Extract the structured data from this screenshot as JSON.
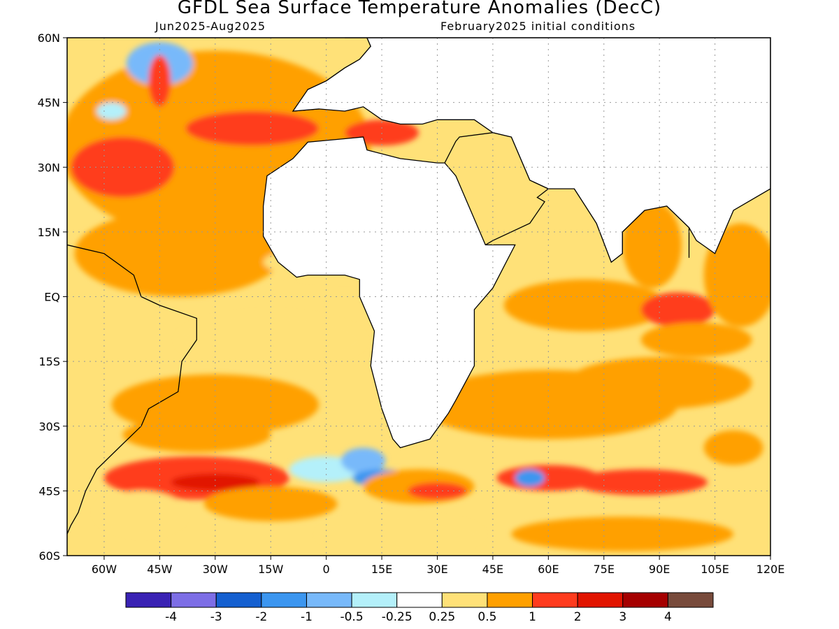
{
  "header": {
    "title": "GFDL Sea Surface Temperature Anomalies (DecC)",
    "period": "Jun2025-Aug2025",
    "initial_conditions": "February2025 initial conditions"
  },
  "colors": {
    "land_outline": "#000000",
    "grid": "#999999"
  },
  "chart_data": {
    "type": "heatmap",
    "title": "GFDL Sea Surface Temperature Anomalies (DecC)",
    "subtitle_left": "Jun2025-Aug2025",
    "subtitle_right": "February2025 initial conditions",
    "xlim": [
      -70,
      120
    ],
    "ylim": [
      -60,
      60
    ],
    "x_ticks": [
      {
        "value": -60,
        "label": "60W"
      },
      {
        "value": -45,
        "label": "45W"
      },
      {
        "value": -30,
        "label": "30W"
      },
      {
        "value": -15,
        "label": "15W"
      },
      {
        "value": 0,
        "label": "0"
      },
      {
        "value": 15,
        "label": "15E"
      },
      {
        "value": 30,
        "label": "30E"
      },
      {
        "value": 45,
        "label": "45E"
      },
      {
        "value": 60,
        "label": "60E"
      },
      {
        "value": 75,
        "label": "75E"
      },
      {
        "value": 90,
        "label": "90E"
      },
      {
        "value": 105,
        "label": "105E"
      },
      {
        "value": 120,
        "label": "120E"
      }
    ],
    "y_ticks": [
      {
        "value": 60,
        "label": "60N"
      },
      {
        "value": 45,
        "label": "45N"
      },
      {
        "value": 30,
        "label": "30N"
      },
      {
        "value": 15,
        "label": "15N"
      },
      {
        "value": 0,
        "label": "EQ"
      },
      {
        "value": -15,
        "label": "15S"
      },
      {
        "value": -30,
        "label": "30S"
      },
      {
        "value": -45,
        "label": "45S"
      },
      {
        "value": -60,
        "label": "60S"
      }
    ],
    "grid": true,
    "colorbar": {
      "colors": [
        "#3a22b4",
        "#7d6ee6",
        "#1560d0",
        "#3c96f0",
        "#78b9fa",
        "#b4f0fa",
        "#ffffff",
        "#ffe178",
        "#ffa000",
        "#ff3c1e",
        "#e11400",
        "#a50000",
        "#784b3c"
      ],
      "labels": [
        "-4",
        "-3",
        "-2",
        "-1",
        "-0.5",
        "-0.25",
        "0.25",
        "0.5",
        "1",
        "2",
        "3",
        "4"
      ]
    },
    "anomaly_regions": [
      {
        "lon": -30,
        "lat": 35,
        "rx": 42,
        "ry": 22,
        "level": 8
      },
      {
        "lon": -40,
        "lat": 10,
        "rx": 28,
        "ry": 10,
        "level": 8
      },
      {
        "lon": -55,
        "lat": 30,
        "rx": 14,
        "ry": 7,
        "level": 9
      },
      {
        "lon": -20,
        "lat": 39,
        "rx": 18,
        "ry": 4,
        "level": 9
      },
      {
        "lon": -45,
        "lat": 54,
        "rx": 9,
        "ry": 5,
        "level": 4
      },
      {
        "lon": -45,
        "lat": 50,
        "rx": 3,
        "ry": 6,
        "level": 9
      },
      {
        "lon": -58,
        "lat": 43,
        "rx": 4,
        "ry": 2,
        "level": 5
      },
      {
        "lon": 5,
        "lat": 8,
        "rx": 22,
        "ry": 4,
        "level": 7
      },
      {
        "lon": -15,
        "lat": -10,
        "rx": 25,
        "ry": 6,
        "level": 7
      },
      {
        "lon": -30,
        "lat": -25,
        "rx": 28,
        "ry": 7,
        "level": 8
      },
      {
        "lon": -35,
        "lat": -32,
        "rx": 20,
        "ry": 4,
        "level": 8
      },
      {
        "lon": -35,
        "lat": -42,
        "rx": 25,
        "ry": 5,
        "level": 9
      },
      {
        "lon": -30,
        "lat": -43,
        "rx": 12,
        "ry": 2,
        "level": 10
      },
      {
        "lon": -15,
        "lat": -48,
        "rx": 18,
        "ry": 4,
        "level": 8
      },
      {
        "lon": -50,
        "lat": -50,
        "rx": 12,
        "ry": 5,
        "level": 7
      },
      {
        "lon": 0,
        "lat": -40,
        "rx": 10,
        "ry": 3,
        "level": 5
      },
      {
        "lon": 10,
        "lat": -38,
        "rx": 6,
        "ry": 3,
        "level": 4
      },
      {
        "lon": 15,
        "lat": -42,
        "rx": 8,
        "ry": 2,
        "level": 3
      },
      {
        "lon": 25,
        "lat": -44,
        "rx": 15,
        "ry": 4,
        "level": 8
      },
      {
        "lon": 30,
        "lat": -45,
        "rx": 8,
        "ry": 2,
        "level": 9
      },
      {
        "lon": 20,
        "lat": -55,
        "rx": 22,
        "ry": 4,
        "level": 7
      },
      {
        "lon": 70,
        "lat": -2,
        "rx": 22,
        "ry": 6,
        "level": 8
      },
      {
        "lon": 95,
        "lat": -3,
        "rx": 10,
        "ry": 4,
        "level": 9
      },
      {
        "lon": 88,
        "lat": 12,
        "rx": 8,
        "ry": 10,
        "level": 8
      },
      {
        "lon": 60,
        "lat": -25,
        "rx": 35,
        "ry": 8,
        "level": 8
      },
      {
        "lon": 90,
        "lat": -20,
        "rx": 25,
        "ry": 6,
        "level": 8
      },
      {
        "lon": 100,
        "lat": -10,
        "rx": 15,
        "ry": 4,
        "level": 8
      },
      {
        "lon": 60,
        "lat": -42,
        "rx": 14,
        "ry": 3,
        "level": 9
      },
      {
        "lon": 55,
        "lat": -42,
        "rx": 4,
        "ry": 2,
        "level": 3
      },
      {
        "lon": 85,
        "lat": -43,
        "rx": 18,
        "ry": 3,
        "level": 9
      },
      {
        "lon": 80,
        "lat": -55,
        "rx": 30,
        "ry": 4,
        "level": 8
      },
      {
        "lon": 110,
        "lat": -35,
        "rx": 8,
        "ry": 4,
        "level": 8
      },
      {
        "lon": 112,
        "lat": 5,
        "rx": 10,
        "ry": 12,
        "level": 8
      },
      {
        "lon": 15,
        "lat": 38,
        "rx": 10,
        "ry": 3,
        "level": 9
      }
    ]
  },
  "map": {
    "continents": [
      {
        "name": "Africa",
        "outline": [
          [
            -17,
            21
          ],
          [
            -16,
            28
          ],
          [
            -9,
            32
          ],
          [
            -5,
            35.8
          ],
          [
            10,
            37
          ],
          [
            11,
            34
          ],
          [
            20,
            32
          ],
          [
            30,
            31
          ],
          [
            32,
            31
          ],
          [
            35,
            28
          ],
          [
            38,
            22
          ],
          [
            43,
            12
          ],
          [
            51,
            12
          ],
          [
            45,
            2
          ],
          [
            40,
            -3
          ],
          [
            40,
            -10
          ],
          [
            40,
            -16
          ],
          [
            35,
            -24
          ],
          [
            33,
            -27
          ],
          [
            28,
            -33
          ],
          [
            20,
            -35
          ],
          [
            18,
            -33
          ],
          [
            15,
            -26
          ],
          [
            12,
            -16
          ],
          [
            13,
            -8
          ],
          [
            9,
            0
          ],
          [
            9,
            4
          ],
          [
            5,
            5
          ],
          [
            -5,
            5
          ],
          [
            -8,
            4.5
          ],
          [
            -13,
            8
          ],
          [
            -17,
            14
          ]
        ]
      },
      {
        "name": "South America",
        "outline": [
          [
            -70,
            12
          ],
          [
            -60,
            10
          ],
          [
            -52,
            5
          ],
          [
            -50,
            0
          ],
          [
            -45,
            -2
          ],
          [
            -35,
            -5
          ],
          [
            -35,
            -10
          ],
          [
            -39,
            -15
          ],
          [
            -40,
            -22
          ],
          [
            -48,
            -26
          ],
          [
            -50,
            -30
          ],
          [
            -56,
            -35
          ],
          [
            -62,
            -40
          ],
          [
            -65,
            -45
          ],
          [
            -67,
            -50
          ],
          [
            -69,
            -53
          ],
          [
            -70,
            -55
          ]
        ]
      },
      {
        "name": "Europe",
        "outline": [
          [
            -9,
            43
          ],
          [
            -2,
            43.5
          ],
          [
            -5,
            48
          ],
          [
            0,
            50
          ],
          [
            5,
            53
          ],
          [
            9,
            55
          ],
          [
            12,
            58
          ],
          [
            10,
            62
          ],
          [
            5,
            62
          ]
        ]
      },
      {
        "name": "Arabia",
        "outline": [
          [
            32,
            31
          ],
          [
            35,
            36
          ],
          [
            36,
            37
          ],
          [
            45,
            38
          ],
          [
            50,
            37
          ],
          [
            55,
            27
          ],
          [
            60,
            25
          ],
          [
            57,
            23
          ],
          [
            59,
            22
          ],
          [
            55,
            17
          ],
          [
            45,
            13
          ],
          [
            43,
            12
          ]
        ]
      },
      {
        "name": "India",
        "outline": [
          [
            67,
            25
          ],
          [
            70,
            21
          ],
          [
            73,
            17
          ],
          [
            77,
            8
          ],
          [
            80,
            10
          ],
          [
            80,
            15
          ],
          [
            86,
            20
          ],
          [
            90,
            22
          ],
          [
            92,
            21
          ],
          [
            98,
            16
          ],
          [
            98,
            9
          ]
        ]
      }
    ]
  }
}
